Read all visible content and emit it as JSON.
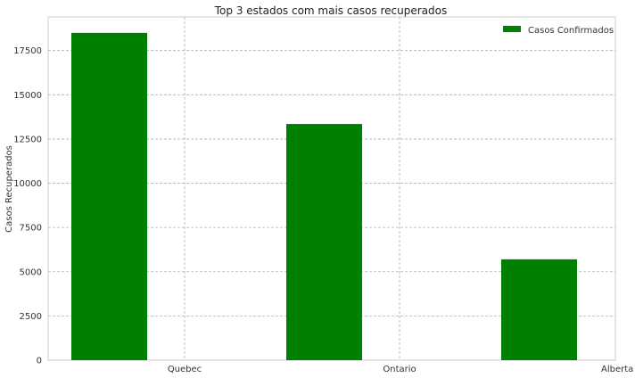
{
  "chart_data": {
    "type": "bar",
    "title": "Top 3 estados com mais casos recuperados",
    "xlabel": "",
    "ylabel": "Casos Recuperados",
    "categories": [
      "Quebec",
      "Ontario",
      "Alberta"
    ],
    "series": [
      {
        "name": "Casos Confirmados",
        "values": [
          18500,
          13350,
          5700
        ],
        "color": "#008000"
      }
    ],
    "ylim": [
      0,
      19400
    ],
    "yticks": [
      0,
      2500,
      5000,
      7500,
      10000,
      12500,
      15000,
      17500
    ],
    "ytick_labels": [
      "0",
      "2500",
      "5000",
      "7500",
      "10000",
      "12500",
      "15000",
      "17500"
    ],
    "grid": true,
    "legend_position": "upper right"
  }
}
